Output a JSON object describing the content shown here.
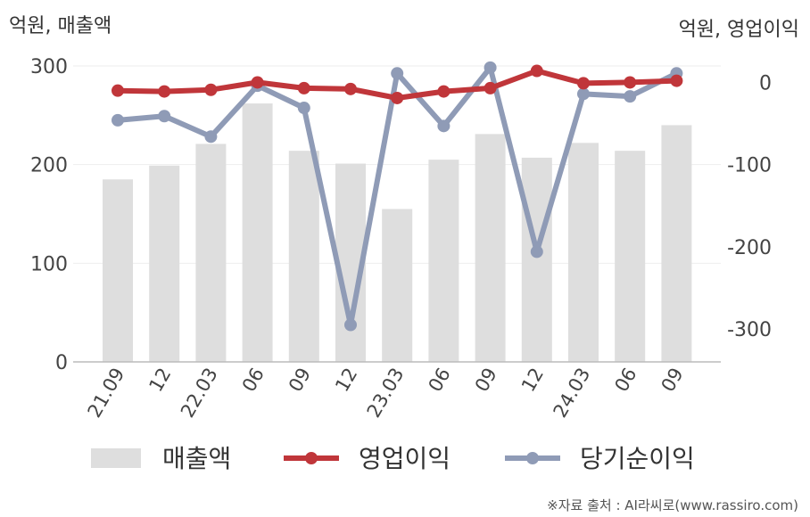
{
  "chart_data": {
    "type": "bar+line",
    "categories": [
      "21.09",
      "12",
      "22.03",
      "06",
      "09",
      "12",
      "23.03",
      "06",
      "09",
      "12",
      "24.03",
      "06",
      "09"
    ],
    "left_axis": {
      "unit_label": "억원, 매출액",
      "range": [
        0,
        300
      ],
      "ticks": [
        0,
        100,
        200,
        300
      ]
    },
    "right_axis": {
      "unit_label": "억원, 영업이익",
      "range": [
        -340,
        20
      ],
      "ticks": [
        0,
        -100,
        -200,
        -300
      ]
    },
    "series": [
      {
        "name": "매출액",
        "kind": "bar",
        "axis": "left",
        "color": "#dedede",
        "values": [
          185,
          199,
          221,
          262,
          214,
          201,
          155,
          205,
          231,
          207,
          222,
          214,
          240
        ]
      },
      {
        "name": "영업이익",
        "kind": "line",
        "axis": "right",
        "color": "#c0363a",
        "values": [
          -10,
          -11,
          -9,
          0,
          -7,
          -8,
          -19,
          -11,
          -7,
          14,
          -1,
          0,
          2
        ]
      },
      {
        "name": "당기순이익",
        "kind": "line",
        "axis": "right",
        "color": "#8f9bb6",
        "values": [
          -46,
          -41,
          -66,
          -4,
          -31,
          -295,
          11,
          -53,
          18,
          -206,
          -14,
          -17,
          11
        ]
      }
    ],
    "grid": true,
    "legend_position": "bottom"
  },
  "source_note": "※자료 출처 : AI라씨로(www.rassiro.com)"
}
